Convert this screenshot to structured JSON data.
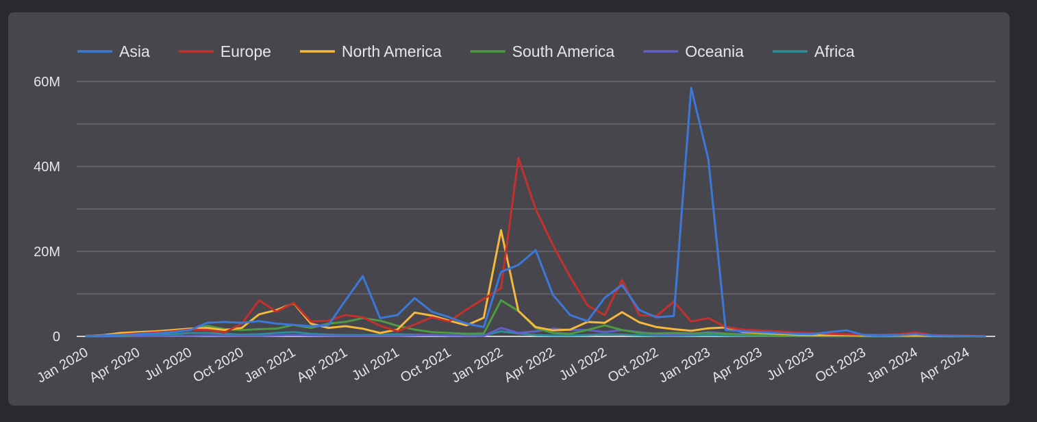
{
  "chart_data": {
    "type": "line",
    "title": "",
    "xlabel": "",
    "ylabel": "",
    "ylim": [
      0,
      60000000
    ],
    "yticks": [
      0,
      20000000,
      40000000,
      60000000
    ],
    "ytick_labels": [
      "0",
      "20M",
      "40M",
      "60M"
    ],
    "grid": true,
    "legend_position": "top-left",
    "x": [
      "2020-01",
      "2020-02",
      "2020-03",
      "2020-04",
      "2020-05",
      "2020-06",
      "2020-07",
      "2020-08",
      "2020-09",
      "2020-10",
      "2020-11",
      "2020-12",
      "2021-01",
      "2021-02",
      "2021-03",
      "2021-04",
      "2021-05",
      "2021-06",
      "2021-07",
      "2021-08",
      "2021-09",
      "2021-10",
      "2021-11",
      "2021-12",
      "2022-01",
      "2022-02",
      "2022-03",
      "2022-04",
      "2022-05",
      "2022-06",
      "2022-07",
      "2022-08",
      "2022-09",
      "2022-10",
      "2022-11",
      "2022-12",
      "2023-01",
      "2023-02",
      "2023-03",
      "2023-04",
      "2023-05",
      "2023-06",
      "2023-07",
      "2023-08",
      "2023-09",
      "2023-10",
      "2023-11",
      "2023-12",
      "2024-01",
      "2024-02",
      "2024-03",
      "2024-04",
      "2024-05"
    ],
    "xtick_labels": [
      "Jan 2020",
      "Apr 2020",
      "Jul 2020",
      "Oct 2020",
      "Jan 2021",
      "Apr 2021",
      "Jul 2021",
      "Oct 2021",
      "Jan 2022",
      "Apr 2022",
      "Jul 2022",
      "Oct 2022",
      "Jan 2023",
      "Apr 2023",
      "Jul 2023",
      "Oct 2023",
      "Jan 2024",
      "Apr 2024"
    ],
    "xtick_index": [
      0,
      3,
      6,
      9,
      12,
      15,
      18,
      21,
      24,
      27,
      30,
      33,
      36,
      39,
      42,
      45,
      48,
      51
    ],
    "series": [
      {
        "name": "Asia",
        "color": "#3c78d8",
        "values": [
          100000,
          200000,
          300000,
          500000,
          700000,
          1000000,
          1500000,
          3200000,
          3400000,
          3200000,
          3600000,
          3000000,
          2700000,
          2400000,
          2600000,
          8500000,
          14200000,
          4300000,
          5000000,
          9000000,
          5800000,
          4500000,
          3000000,
          2200000,
          15200000,
          16800000,
          20300000,
          9800000,
          5000000,
          3600000,
          9100000,
          12100000,
          6200000,
          4500000,
          4800000,
          58500000,
          41600000,
          1500000,
          1200000,
          1000000,
          800000,
          600000,
          500000,
          1000000,
          1400000,
          300000,
          200000,
          300000,
          500000,
          200000,
          150000,
          100000,
          50000
        ]
      },
      {
        "name": "Europe",
        "color": "#c4312d",
        "values": [
          100000,
          200000,
          400000,
          700000,
          900000,
          1200000,
          1600000,
          1500000,
          900000,
          3000000,
          8500000,
          5800000,
          7900000,
          3500000,
          3700000,
          5000000,
          4500000,
          2500000,
          1200000,
          2800000,
          4500000,
          3500000,
          6300000,
          8800000,
          11300000,
          42000000,
          30000000,
          21500000,
          14000000,
          7300000,
          5000000,
          13300000,
          5000000,
          4800000,
          8200000,
          3500000,
          4300000,
          2200000,
          1600000,
          1400000,
          1200000,
          900000,
          800000,
          600000,
          500000,
          400000,
          400000,
          500000,
          900000,
          300000,
          200000,
          150000,
          100000
        ]
      },
      {
        "name": "North America",
        "color": "#f5b93c",
        "values": [
          100000,
          300000,
          800000,
          1000000,
          1200000,
          1500000,
          1800000,
          2000000,
          1500000,
          2000000,
          5200000,
          6200000,
          7800000,
          3000000,
          2000000,
          2400000,
          1800000,
          800000,
          1600000,
          5600000,
          4900000,
          3700000,
          2600000,
          4400000,
          25000000,
          6000000,
          2200000,
          1400000,
          1600000,
          3400000,
          3200000,
          5700000,
          3300000,
          2200000,
          1700000,
          1300000,
          1900000,
          2100000,
          1000000,
          800000,
          600000,
          400000,
          300000,
          300000,
          300000,
          200000,
          200000,
          200000,
          200000,
          150000,
          100000,
          100000,
          50000
        ]
      },
      {
        "name": "South America",
        "color": "#4e9a43",
        "values": [
          50000,
          100000,
          200000,
          400000,
          800000,
          1200000,
          1500000,
          2500000,
          1700000,
          1500000,
          1700000,
          1800000,
          2700000,
          2000000,
          3000000,
          3400000,
          4300000,
          3700000,
          2500000,
          1600000,
          1000000,
          800000,
          600000,
          700000,
          8500000,
          6000000,
          2000000,
          800000,
          600000,
          1500000,
          2600000,
          1500000,
          800000,
          700000,
          800000,
          700000,
          800000,
          600000,
          400000,
          300000,
          200000,
          150000,
          100000,
          100000,
          100000,
          50000,
          50000,
          50000,
          50000,
          50000,
          50000,
          50000,
          50000
        ]
      },
      {
        "name": "Oceania",
        "color": "#6161c7",
        "values": [
          10000,
          10000,
          20000,
          50000,
          80000,
          100000,
          100000,
          200000,
          150000,
          100000,
          100000,
          200000,
          300000,
          200000,
          150000,
          100000,
          100000,
          100000,
          100000,
          200000,
          300000,
          200000,
          150000,
          100000,
          2000000,
          800000,
          1200000,
          1800000,
          1500000,
          1500000,
          1000000,
          1500000,
          1000000,
          500000,
          300000,
          500000,
          1000000,
          700000,
          500000,
          300000,
          300000,
          200000,
          200000,
          200000,
          100000,
          100000,
          100000,
          50000,
          50000,
          50000,
          50000,
          50000,
          20000
        ]
      },
      {
        "name": "Africa",
        "color": "#2e8b9a",
        "values": [
          20000,
          50000,
          100000,
          200000,
          300000,
          500000,
          800000,
          800000,
          600000,
          400000,
          500000,
          800000,
          1000000,
          600000,
          400000,
          300000,
          300000,
          400000,
          500000,
          400000,
          300000,
          200000,
          150000,
          200000,
          1200000,
          700000,
          300000,
          200000,
          200000,
          300000,
          500000,
          400000,
          250000,
          150000,
          150000,
          200000,
          300000,
          200000,
          150000,
          100000,
          100000,
          80000,
          60000,
          50000,
          50000,
          40000,
          40000,
          30000,
          30000,
          30000,
          20000,
          20000,
          20000
        ]
      }
    ]
  }
}
